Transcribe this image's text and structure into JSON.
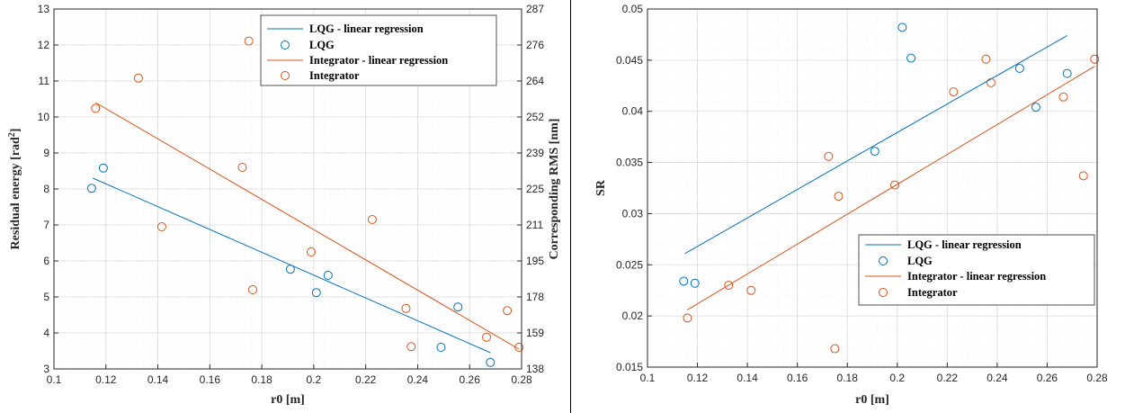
{
  "colors": {
    "lqg": "#0072BD",
    "integrator": "#D95319",
    "grid_major": "#d9d9d9",
    "grid_minor": "#ededed",
    "axis": "#262626"
  },
  "chart_data": [
    {
      "type": "scatter",
      "xlabel": "r0 [m]",
      "ylabel": "Residual energy [rad²]",
      "ylabel_main": "Residual energy [rad",
      "ylabel_sup": "2",
      "ylabel_end": "]",
      "y2label": "Corresponding RMS [nm]",
      "xlim": [
        0.1,
        0.28
      ],
      "ylim": [
        3,
        13
      ],
      "xticks": [
        "0.1",
        "0.12",
        "0.14",
        "0.16",
        "0.18",
        "0.2",
        "0.22",
        "0.24",
        "0.26",
        "0.28"
      ],
      "yticks": [
        "3",
        "4",
        "5",
        "6",
        "7",
        "8",
        "9",
        "10",
        "11",
        "12",
        "13"
      ],
      "y2ticks": [
        "138",
        "159",
        "178",
        "195",
        "211",
        "225",
        "239",
        "252",
        "264",
        "276",
        "287"
      ],
      "grid": true,
      "legend_position": "top-right",
      "series": [
        {
          "name": "LQG - linear regression",
          "kind": "line",
          "color_key": "lqg",
          "x": [
            0.115,
            0.268
          ],
          "y": [
            8.3,
            3.45
          ]
        },
        {
          "name": "LQG",
          "kind": "markers",
          "color_key": "lqg",
          "x": [
            0.1145,
            0.119,
            0.191,
            0.201,
            0.2055,
            0.249,
            0.2555,
            0.268
          ],
          "y": [
            8.02,
            8.58,
            5.77,
            5.12,
            5.6,
            3.6,
            4.72,
            3.18
          ]
        },
        {
          "name": "Integrator - linear regression",
          "kind": "line",
          "color_key": "integrator",
          "x": [
            0.116,
            0.279
          ],
          "y": [
            10.4,
            3.55
          ]
        },
        {
          "name": "Integrator",
          "kind": "markers",
          "color_key": "integrator",
          "x": [
            0.116,
            0.1325,
            0.1415,
            0.1725,
            0.175,
            0.1765,
            0.199,
            0.2225,
            0.2355,
            0.2375,
            0.2665,
            0.2745,
            0.279
          ],
          "y": [
            10.24,
            11.08,
            6.95,
            8.6,
            12.11,
            5.2,
            6.25,
            7.15,
            4.68,
            3.62,
            3.88,
            4.62,
            3.6
          ]
        }
      ]
    },
    {
      "type": "scatter",
      "xlabel": "r0 [m]",
      "ylabel": "SR",
      "xlim": [
        0.1,
        0.28
      ],
      "ylim": [
        0.015,
        0.05
      ],
      "xticks": [
        "0.1",
        "0.12",
        "0.14",
        "0.16",
        "0.18",
        "0.2",
        "0.22",
        "0.24",
        "0.26",
        "0.28"
      ],
      "yticks": [
        "0.015",
        "0.02",
        "0.025",
        "0.03",
        "0.035",
        "0.04",
        "0.045",
        "0.05"
      ],
      "grid": true,
      "legend_position": "bottom-right",
      "series": [
        {
          "name": "LQG - linear regression",
          "kind": "line",
          "color_key": "lqg",
          "x": [
            0.115,
            0.268
          ],
          "y": [
            0.0261,
            0.0474
          ]
        },
        {
          "name": "LQG",
          "kind": "markers",
          "color_key": "lqg",
          "x": [
            0.1145,
            0.119,
            0.191,
            0.202,
            0.2055,
            0.249,
            0.2555,
            0.268
          ],
          "y": [
            0.0234,
            0.0232,
            0.0361,
            0.0482,
            0.0452,
            0.0442,
            0.0404,
            0.0437
          ]
        },
        {
          "name": "Integrator - linear regression",
          "kind": "line",
          "color_key": "integrator",
          "x": [
            0.116,
            0.279
          ],
          "y": [
            0.0206,
            0.0444
          ]
        },
        {
          "name": "Integrator",
          "kind": "markers",
          "color_key": "integrator",
          "x": [
            0.116,
            0.1325,
            0.1415,
            0.1725,
            0.175,
            0.1765,
            0.199,
            0.2225,
            0.2355,
            0.2375,
            0.2665,
            0.2745,
            0.279
          ],
          "y": [
            0.0198,
            0.023,
            0.0225,
            0.0356,
            0.0168,
            0.0317,
            0.0328,
            0.0419,
            0.0451,
            0.0428,
            0.0414,
            0.0337,
            0.0451
          ]
        }
      ]
    }
  ]
}
